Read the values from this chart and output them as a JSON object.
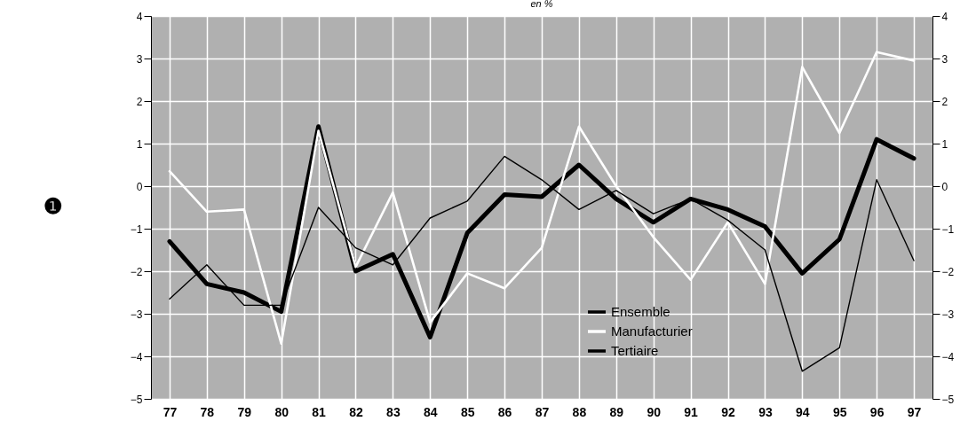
{
  "chart_data": {
    "type": "line",
    "title": "en %",
    "categories": [
      "77",
      "78",
      "79",
      "80",
      "81",
      "82",
      "83",
      "84",
      "85",
      "86",
      "87",
      "88",
      "89",
      "90",
      "91",
      "92",
      "93",
      "94",
      "95",
      "96",
      "97"
    ],
    "series": [
      {
        "name": "Ensemble",
        "color": "#000000",
        "values": [
          -1.3,
          -2.3,
          -2.5,
          -2.95,
          1.4,
          -2.0,
          -1.6,
          -3.55,
          -1.1,
          -0.2,
          -0.25,
          0.5,
          -0.3,
          -0.85,
          -0.3,
          -0.55,
          -0.95,
          -2.05,
          -1.25,
          1.1,
          0.65
        ]
      },
      {
        "name": "Manufacturier",
        "color": "#ffffff",
        "values": [
          0.35,
          -0.6,
          -0.55,
          -3.7,
          1.3,
          -1.9,
          -0.15,
          -3.2,
          -2.05,
          -2.4,
          -1.45,
          1.4,
          0.0,
          -1.2,
          -2.2,
          -0.85,
          -2.3,
          2.8,
          1.25,
          3.15,
          2.95
        ]
      },
      {
        "name": "Tertiaire",
        "color": "#000000",
        "values": [
          -2.65,
          -1.85,
          -2.8,
          -2.8,
          -0.5,
          -1.45,
          -1.85,
          -0.75,
          -0.35,
          0.7,
          0.15,
          -0.55,
          -0.1,
          -0.65,
          -0.3,
          -0.8,
          -1.5,
          -4.35,
          -3.8,
          0.15,
          -1.75
        ]
      }
    ],
    "ylim": [
      -5,
      4
    ],
    "yticks": [
      -5,
      -4,
      -3,
      -2,
      -1,
      0,
      1,
      2,
      3,
      4
    ],
    "y2lim": [
      -5,
      4
    ],
    "y2ticks": [
      -5,
      -4,
      -3,
      -2,
      -1,
      0,
      1,
      2,
      3,
      4
    ],
    "grid": true,
    "legend": "bottom",
    "marker": "none",
    "annotations": [
      "❶"
    ]
  }
}
